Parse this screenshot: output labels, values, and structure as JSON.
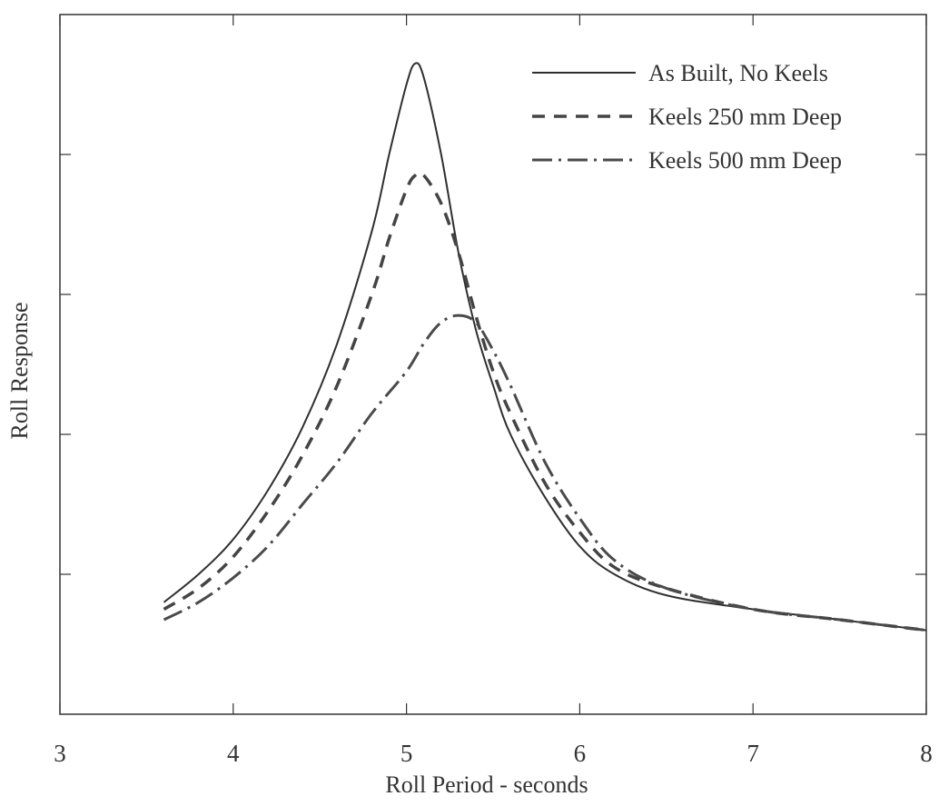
{
  "chart_data": {
    "type": "line",
    "title": "",
    "xlabel": "Roll Period - seconds",
    "ylabel": "Roll Response",
    "xlim": [
      3,
      8
    ],
    "ylim": [
      0,
      10
    ],
    "x_ticks": [
      3,
      4,
      5,
      6,
      7,
      8
    ],
    "x_tick_labels": [
      "3",
      "4",
      "5",
      "6",
      "7",
      "8"
    ],
    "y_ticks": [
      2,
      4,
      6,
      8
    ],
    "y_tick_labels": [],
    "grid": false,
    "legend_position": "top-right",
    "series": [
      {
        "name": "As Built, No Keels",
        "style": "solid",
        "color": "#2f2f2f",
        "x": [
          3.6,
          3.8,
          4.0,
          4.2,
          4.4,
          4.6,
          4.8,
          4.9,
          5.0,
          5.05,
          5.1,
          5.2,
          5.3,
          5.4,
          5.5,
          5.6,
          5.8,
          6.0,
          6.2,
          6.5,
          7.0,
          7.5,
          8.0
        ],
        "y": [
          1.6,
          2.0,
          2.5,
          3.2,
          4.1,
          5.3,
          6.9,
          8.0,
          9.0,
          9.3,
          9.1,
          8.0,
          6.6,
          5.5,
          4.7,
          4.0,
          3.1,
          2.4,
          2.0,
          1.7,
          1.5,
          1.35,
          1.2
        ]
      },
      {
        "name": "Keels 250 mm Deep",
        "style": "dashed",
        "color": "#444444",
        "x": [
          3.6,
          3.8,
          4.0,
          4.2,
          4.4,
          4.6,
          4.8,
          4.9,
          5.0,
          5.05,
          5.1,
          5.2,
          5.3,
          5.4,
          5.5,
          5.6,
          5.8,
          6.0,
          6.2,
          6.5,
          7.0,
          7.5,
          8.0
        ],
        "y": [
          1.5,
          1.8,
          2.25,
          2.9,
          3.7,
          4.7,
          6.0,
          6.8,
          7.5,
          7.7,
          7.7,
          7.3,
          6.6,
          5.7,
          4.9,
          4.3,
          3.3,
          2.6,
          2.1,
          1.8,
          1.5,
          1.35,
          1.2
        ]
      },
      {
        "name": "Keels 500 mm Deep",
        "style": "dashdot",
        "color": "#4a4a4a",
        "x": [
          3.6,
          3.8,
          4.0,
          4.2,
          4.4,
          4.6,
          4.8,
          5.0,
          5.1,
          5.2,
          5.3,
          5.4,
          5.5,
          5.6,
          5.8,
          6.0,
          6.2,
          6.5,
          7.0,
          7.5,
          8.0
        ],
        "y": [
          1.35,
          1.6,
          1.95,
          2.4,
          3.0,
          3.6,
          4.3,
          4.9,
          5.3,
          5.6,
          5.7,
          5.6,
          5.2,
          4.7,
          3.6,
          2.8,
          2.2,
          1.8,
          1.5,
          1.35,
          1.2
        ]
      }
    ]
  },
  "colors": {
    "axis": "#333333",
    "background": "#ffffff"
  }
}
